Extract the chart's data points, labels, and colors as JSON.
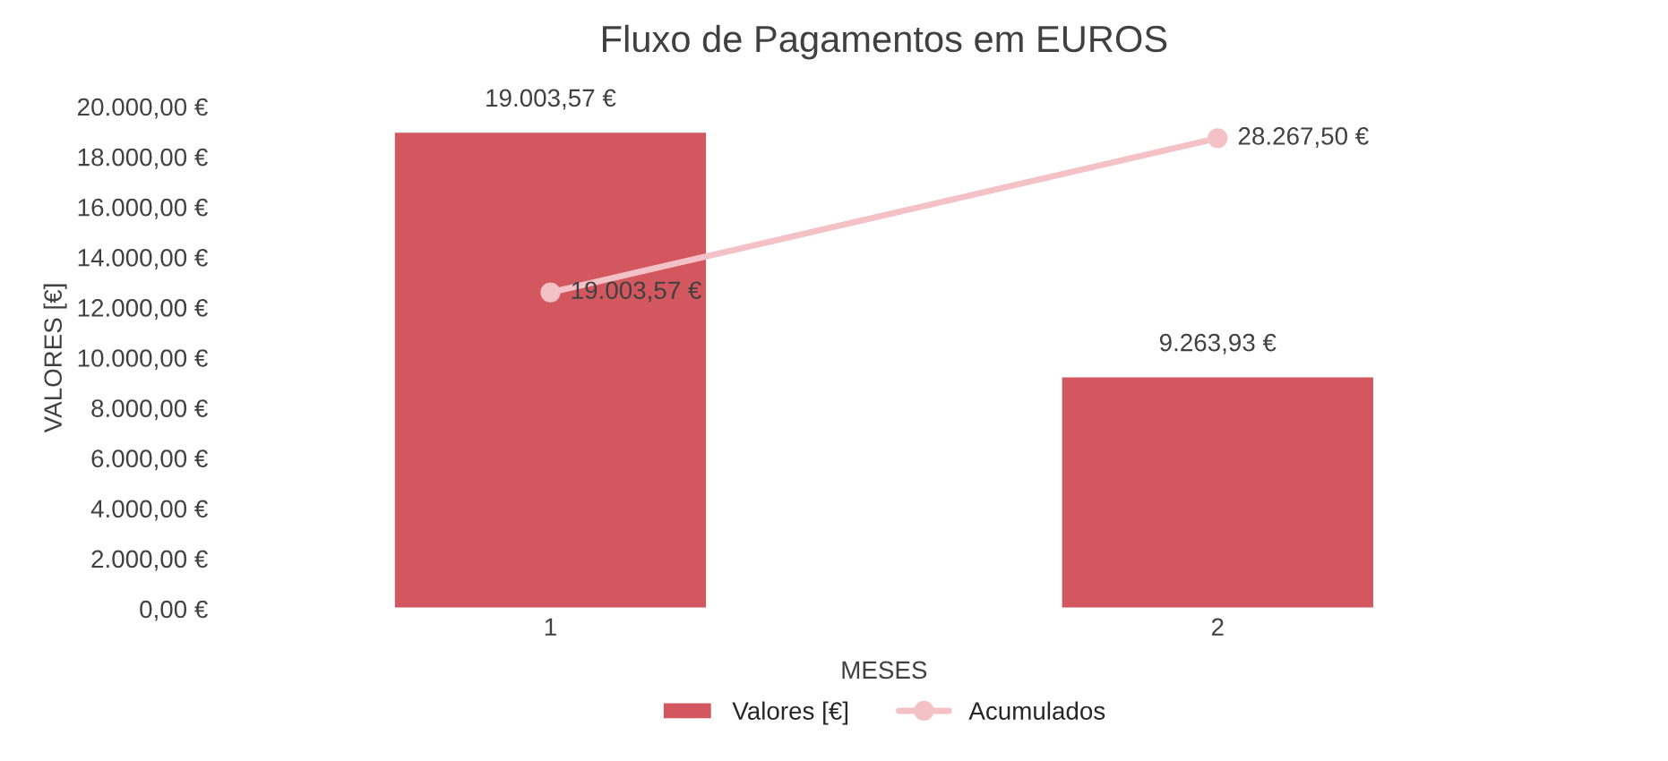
{
  "chart_data": {
    "type": "bar",
    "title": "Fluxo de Pagamentos em EUROS",
    "xlabel": "MESES",
    "ylabel": "VALORES [€]",
    "categories": [
      "1",
      "2"
    ],
    "series": [
      {
        "name": "Valores [€]",
        "color": "#d2575f",
        "values": [
          19003.57,
          9263.93
        ],
        "value_labels": [
          "19.003,57 €",
          "9.263,93 €"
        ]
      },
      {
        "name": "Acumulados",
        "type": "line",
        "axis": "y2",
        "color": "#f4c2c6",
        "marker": "circle",
        "line_style": "solid",
        "values": [
          19003.57,
          28267.5
        ],
        "value_labels": [
          "19.003,57 €",
          "28.267,50 €"
        ]
      }
    ],
    "ylim": [
      0,
      20000
    ],
    "yticks": [
      {
        "value": 0,
        "label": "0,00 €"
      },
      {
        "value": 2000,
        "label": "2.000,00 €"
      },
      {
        "value": 4000,
        "label": "4.000,00 €"
      },
      {
        "value": 6000,
        "label": "6.000,00 €"
      },
      {
        "value": 8000,
        "label": "8.000,00 €"
      },
      {
        "value": 10000,
        "label": "10.000,00 €"
      },
      {
        "value": 12000,
        "label": "12.000,00 €"
      },
      {
        "value": 14000,
        "label": "14.000,00 €"
      },
      {
        "value": 16000,
        "label": "16.000,00 €"
      },
      {
        "value": 18000,
        "label": "18.000,00 €"
      },
      {
        "value": 20000,
        "label": "20.000,00 €"
      }
    ],
    "tick_labels": "xy",
    "grid": false,
    "legend": "bottom"
  }
}
